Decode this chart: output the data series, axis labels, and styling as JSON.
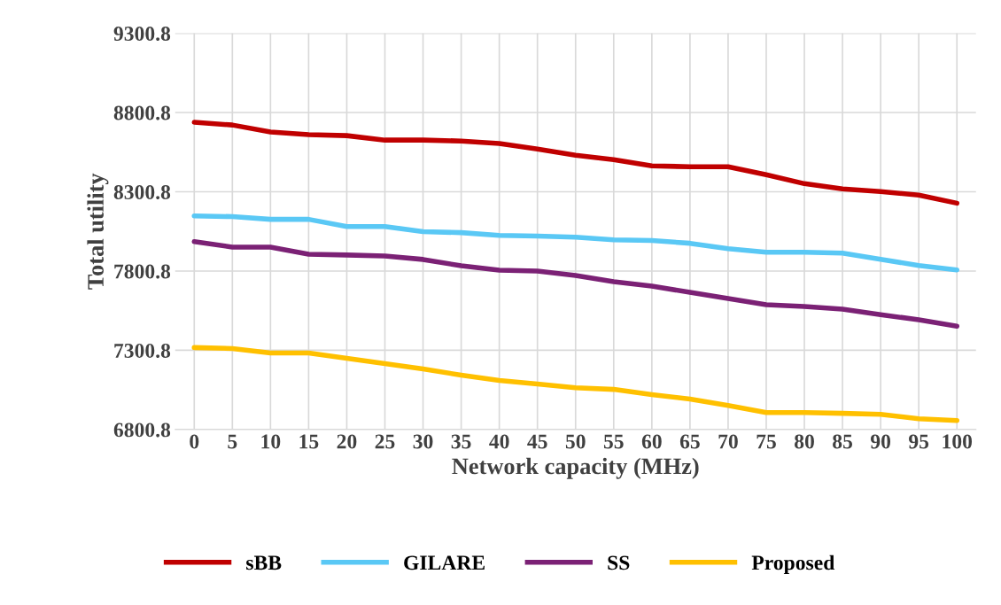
{
  "chart_data": {
    "type": "line",
    "xlabel": "Network capacity (MHz)",
    "ylabel": "Total utility",
    "categories": [
      "0",
      "5",
      "10",
      "15",
      "20",
      "25",
      "30",
      "35",
      "40",
      "45",
      "50",
      "55",
      "60",
      "65",
      "70",
      "75",
      "80",
      "85",
      "90",
      "95",
      "100"
    ],
    "ylim": [
      6800.8,
      9300.8
    ],
    "yticks": [
      {
        "value": 6800.8,
        "label": "6800.8"
      },
      {
        "value": 7300.8,
        "label": "7300.8"
      },
      {
        "value": 7800.8,
        "label": "7800.8"
      },
      {
        "value": 8300.8,
        "label": "8300.8"
      },
      {
        "value": 8800.8,
        "label": "8800.8"
      },
      {
        "value": 9300.8,
        "label": "9300.8"
      }
    ],
    "grid": true,
    "legend": "bottom",
    "marker": "none",
    "line_style": "solid",
    "series": [
      {
        "name": "sBB",
        "color": "#c00000",
        "values": [
          8739,
          8722,
          8678,
          8661,
          8655,
          8627,
          8627,
          8621,
          8605,
          8571,
          8532,
          8504,
          8464,
          8459,
          8459,
          8408,
          8352,
          8319,
          8302,
          8280,
          8229
        ]
      },
      {
        "name": "GILARE",
        "color": "#5ac8f5",
        "values": [
          8149,
          8144,
          8127,
          8127,
          8082,
          8082,
          8049,
          8043,
          8026,
          8021,
          8015,
          7998,
          7993,
          7976,
          7942,
          7920,
          7920,
          7914,
          7875,
          7836,
          7808
        ]
      },
      {
        "name": "SS",
        "color": "#7b2175",
        "values": [
          7986,
          7952,
          7952,
          7907,
          7902,
          7896,
          7874,
          7834,
          7806,
          7801,
          7773,
          7734,
          7706,
          7666,
          7627,
          7588,
          7577,
          7560,
          7526,
          7493,
          7453
        ]
      },
      {
        "name": "Proposed",
        "color": "#ffc000",
        "values": [
          7318,
          7312,
          7284,
          7284,
          7250,
          7217,
          7183,
          7144,
          7110,
          7088,
          7065,
          7054,
          7021,
          6993,
          6953,
          6908,
          6908,
          6903,
          6897,
          6869,
          6858
        ]
      }
    ]
  }
}
